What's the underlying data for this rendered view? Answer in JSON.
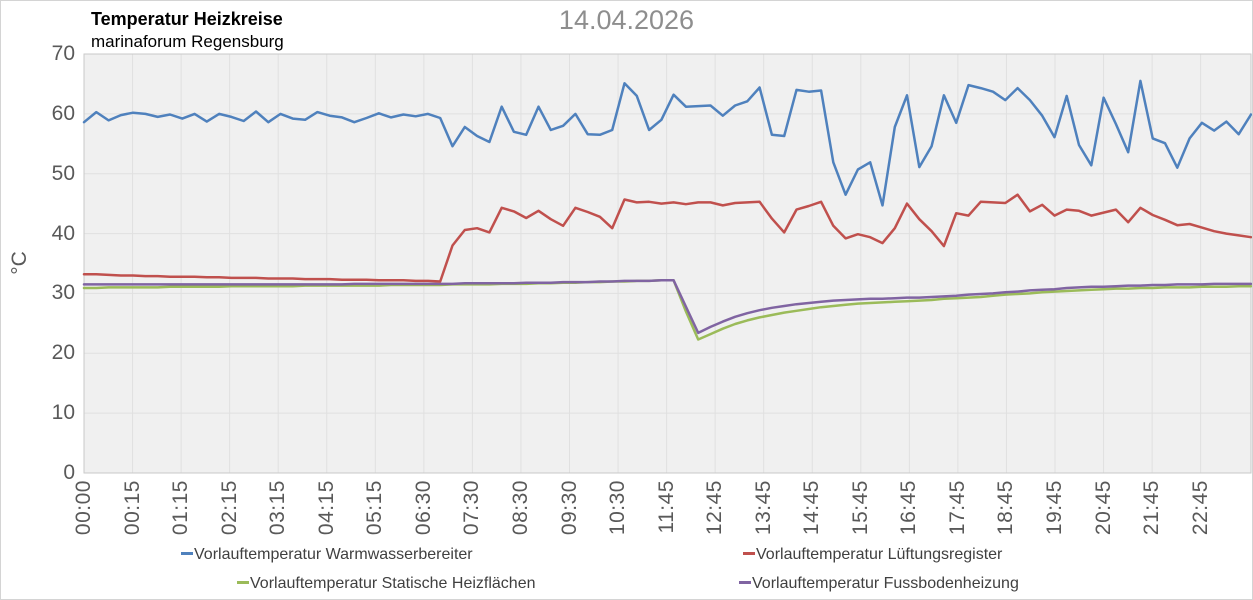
{
  "chart_data": {
    "type": "line",
    "title": "Temperatur Heizkreise",
    "subtitle": "marinaforum Regensburg",
    "date_label": "14.04.2026",
    "ylabel": "°C",
    "ylim": [
      0,
      70
    ],
    "y_ticks": [
      0,
      10,
      20,
      30,
      40,
      50,
      60,
      70
    ],
    "grid": true,
    "legend_position": "bottom",
    "plot_background": "#f0f0f0",
    "gridline_color": "#e0e0e0",
    "x_tick_labels": [
      "00:00",
      "00:15",
      "01:15",
      "02:15",
      "03:15",
      "04:15",
      "05:15",
      "06:30",
      "07:30",
      "08:30",
      "09:30",
      "10:30",
      "11:45",
      "12:45",
      "13:45",
      "14:45",
      "15:45",
      "16:45",
      "17:45",
      "18:45",
      "19:45",
      "20:45",
      "21:45",
      "22:45"
    ],
    "series": [
      {
        "name": "Vorlauftemperatur Warmwasserbereiter",
        "color": "#4f81bd",
        "values": [
          58.6,
          60.3,
          58.9,
          59.8,
          60.2,
          60.0,
          59.5,
          59.9,
          59.2,
          60.0,
          58.7,
          60.0,
          59.5,
          58.8,
          60.4,
          58.6,
          60.0,
          59.2,
          59.0,
          60.3,
          59.7,
          59.4,
          58.6,
          59.3,
          60.1,
          59.4,
          59.9,
          59.6,
          60.0,
          59.3,
          54.6,
          57.8,
          56.3,
          55.3,
          61.2,
          57.0,
          56.5,
          61.2,
          57.3,
          58.0,
          60.0,
          56.6,
          56.5,
          57.3,
          65.1,
          63.0,
          57.3,
          59.0,
          63.2,
          61.2,
          61.3,
          61.4,
          59.7,
          61.4,
          62.1,
          64.4,
          56.5,
          56.3,
          64.0,
          63.7,
          63.9,
          51.9,
          46.5,
          50.7,
          51.9,
          44.7,
          57.8,
          63.1,
          51.1,
          54.6,
          63.1,
          58.5,
          64.8,
          64.3,
          63.7,
          62.3,
          64.3,
          62.3,
          59.7,
          56.1,
          63.0,
          54.8,
          51.4,
          62.7,
          58.3,
          53.6,
          65.5,
          55.9,
          55.1,
          51.0,
          55.9,
          58.5,
          57.2,
          58.7,
          56.6,
          59.9
        ]
      },
      {
        "name": "Vorlauftemperatur Lüftungsregister",
        "color": "#c0504d",
        "values": [
          33.2,
          33.2,
          33.1,
          33.0,
          33.0,
          32.9,
          32.9,
          32.8,
          32.8,
          32.8,
          32.7,
          32.7,
          32.6,
          32.6,
          32.6,
          32.5,
          32.5,
          32.5,
          32.4,
          32.4,
          32.4,
          32.3,
          32.3,
          32.3,
          32.2,
          32.2,
          32.2,
          32.1,
          32.1,
          32.0,
          38.0,
          40.6,
          40.9,
          40.2,
          44.3,
          43.7,
          42.6,
          43.8,
          42.4,
          41.3,
          44.3,
          43.6,
          42.8,
          40.9,
          45.7,
          45.2,
          45.3,
          45.0,
          45.2,
          44.9,
          45.2,
          45.2,
          44.7,
          45.1,
          45.2,
          45.3,
          42.5,
          40.2,
          44.0,
          44.6,
          45.3,
          41.3,
          39.2,
          39.9,
          39.4,
          38.4,
          40.9,
          45.0,
          42.4,
          40.4,
          37.9,
          43.4,
          43.0,
          45.3,
          45.2,
          45.1,
          46.5,
          43.7,
          44.8,
          43.0,
          44.0,
          43.8,
          43.0,
          43.5,
          44.0,
          41.9,
          44.3,
          43.1,
          42.3,
          41.4,
          41.6,
          41.0,
          40.4,
          40.0,
          39.7,
          39.4
        ]
      },
      {
        "name": "Vorlauftemperatur Statische Heizflächen",
        "color": "#9bbb59",
        "values": [
          30.9,
          30.9,
          31.0,
          31.0,
          31.0,
          31.0,
          31.0,
          31.1,
          31.1,
          31.1,
          31.1,
          31.1,
          31.2,
          31.2,
          31.2,
          31.2,
          31.2,
          31.2,
          31.3,
          31.3,
          31.3,
          31.3,
          31.3,
          31.3,
          31.3,
          31.4,
          31.4,
          31.4,
          31.4,
          31.4,
          31.5,
          31.5,
          31.5,
          31.5,
          31.6,
          31.6,
          31.6,
          31.7,
          31.7,
          31.8,
          31.8,
          31.9,
          31.9,
          32.0,
          32.0,
          32.1,
          32.1,
          32.2,
          32.2,
          27.0,
          22.3,
          23.2,
          24.1,
          24.9,
          25.5,
          26.0,
          26.4,
          26.8,
          27.1,
          27.4,
          27.7,
          27.9,
          28.1,
          28.3,
          28.4,
          28.5,
          28.6,
          28.7,
          28.8,
          28.9,
          29.1,
          29.2,
          29.3,
          29.4,
          29.6,
          29.8,
          29.9,
          30.0,
          30.2,
          30.3,
          30.4,
          30.5,
          30.6,
          30.7,
          30.8,
          30.8,
          30.9,
          30.9,
          31.0,
          31.0,
          31.0,
          31.1,
          31.1,
          31.1,
          31.2,
          31.2
        ]
      },
      {
        "name": "Vorlauftemperatur Fussbodenheizung",
        "color": "#8064a2",
        "values": [
          31.5,
          31.5,
          31.5,
          31.5,
          31.5,
          31.5,
          31.5,
          31.5,
          31.5,
          31.5,
          31.5,
          31.5,
          31.5,
          31.5,
          31.5,
          31.5,
          31.5,
          31.5,
          31.5,
          31.5,
          31.5,
          31.5,
          31.6,
          31.6,
          31.6,
          31.6,
          31.6,
          31.6,
          31.6,
          31.6,
          31.6,
          31.7,
          31.7,
          31.7,
          31.7,
          31.7,
          31.8,
          31.8,
          31.8,
          31.9,
          31.9,
          31.9,
          32.0,
          32.0,
          32.1,
          32.1,
          32.1,
          32.2,
          32.2,
          27.8,
          23.4,
          24.4,
          25.3,
          26.1,
          26.7,
          27.2,
          27.6,
          27.9,
          28.2,
          28.4,
          28.6,
          28.8,
          28.9,
          29.0,
          29.1,
          29.1,
          29.2,
          29.3,
          29.3,
          29.4,
          29.5,
          29.6,
          29.8,
          29.9,
          30.0,
          30.2,
          30.3,
          30.5,
          30.6,
          30.7,
          30.9,
          31.0,
          31.1,
          31.1,
          31.2,
          31.3,
          31.3,
          31.4,
          31.4,
          31.5,
          31.5,
          31.5,
          31.6,
          31.6,
          31.6,
          31.6
        ]
      }
    ]
  }
}
